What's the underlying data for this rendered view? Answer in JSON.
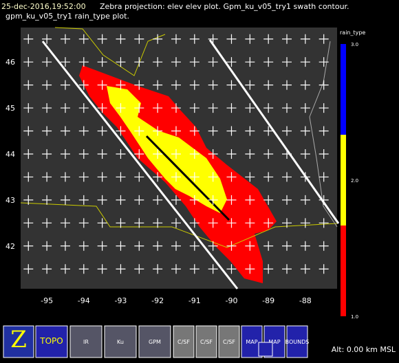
{
  "header": {
    "time": "25-dec-2016,19:52:00",
    "line1": "Zebra projection: elev elev  plot.  Gpm_ku_v05_try1 swath contour.",
    "line2": "gpm_ku_v05_try1 rain_type  plot."
  },
  "map": {
    "xlim": [
      -95.71,
      -87.14
    ],
    "ylim": [
      41.07,
      46.75
    ],
    "xticks": [
      -95,
      -94,
      -93,
      -92,
      -91,
      -90,
      -89,
      -88
    ],
    "yticks": [
      42,
      43,
      44,
      45,
      46
    ]
  },
  "colorbar": {
    "title": "rain_type",
    "lim": [
      1,
      3
    ],
    "ticks": [
      {
        "value": 1,
        "label": "1.0"
      },
      {
        "value": 2,
        "label": "2.0"
      },
      {
        "value": 3,
        "label": "3.0"
      }
    ],
    "colors": [
      "#ff0000",
      "#ffff00",
      "#0000ff"
    ]
  },
  "toolbar": {
    "icons": [
      "TOPO",
      "IR",
      "Ku",
      "GPM",
      "C/SF",
      "C/SF",
      "C/SF",
      "MAP",
      "MAP",
      "BOUNDS"
    ],
    "altitude": "Alt: 0.00 km MSL"
  }
}
